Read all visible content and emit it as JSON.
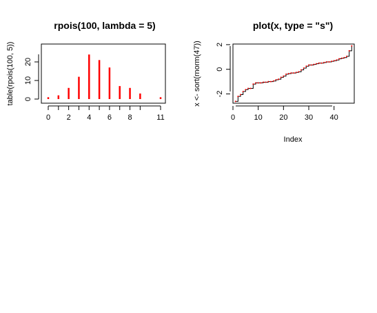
{
  "chart_data": [
    {
      "type": "bar",
      "title": "rpois(100, lambda = 5)",
      "xlabel": "",
      "ylabel": "table(rpois(100, 5))",
      "categories": [
        "0",
        "1",
        "2",
        "3",
        "4",
        "5",
        "6",
        "7",
        "8",
        "9",
        "11"
      ],
      "x": [
        0,
        1,
        2,
        3,
        4,
        5,
        6,
        7,
        8,
        9,
        11
      ],
      "values": [
        1,
        2,
        6,
        12,
        24,
        21,
        17,
        7,
        6,
        3,
        1
      ],
      "x_tick_labels": [
        "0",
        "2",
        "4",
        "6",
        "8",
        "11"
      ],
      "y_ticks": [
        "0",
        "10",
        "20"
      ],
      "ylim": [
        0,
        25
      ],
      "bar_color": "#ff0000",
      "grid": false
    },
    {
      "type": "line",
      "title": "plot(x, type = \"s\")",
      "xlabel": "Index",
      "ylabel": "x <- sort(rnorm(47))",
      "x": [
        1,
        2,
        3,
        4,
        5,
        6,
        7,
        8,
        9,
        10,
        11,
        12,
        13,
        14,
        15,
        16,
        17,
        18,
        19,
        20,
        21,
        22,
        23,
        24,
        25,
        26,
        27,
        28,
        29,
        30,
        31,
        32,
        33,
        34,
        35,
        36,
        37,
        38,
        39,
        40,
        41,
        42,
        43,
        44,
        45,
        46,
        47
      ],
      "values": [
        -2.6,
        -2.2,
        -2.05,
        -1.8,
        -1.65,
        -1.55,
        -1.55,
        -1.2,
        -1.1,
        -1.1,
        -1.1,
        -1.05,
        -1.05,
        -1.0,
        -1.0,
        -0.95,
        -0.85,
        -0.8,
        -0.65,
        -0.55,
        -0.4,
        -0.35,
        -0.3,
        -0.3,
        -0.25,
        -0.2,
        -0.05,
        0.1,
        0.25,
        0.35,
        0.35,
        0.4,
        0.45,
        0.5,
        0.5,
        0.55,
        0.6,
        0.6,
        0.65,
        0.7,
        0.75,
        0.85,
        0.9,
        0.95,
        1.05,
        1.5,
        1.9
      ],
      "x_ticks": [
        "0",
        "10",
        "20",
        "30",
        "40"
      ],
      "y_ticks": [
        "-2",
        "0",
        "2"
      ],
      "xlim": [
        0,
        48
      ],
      "ylim": [
        -2.75,
        2.05
      ],
      "line_color": "#000000",
      "point_color": "#ff0000",
      "grid": false
    }
  ]
}
